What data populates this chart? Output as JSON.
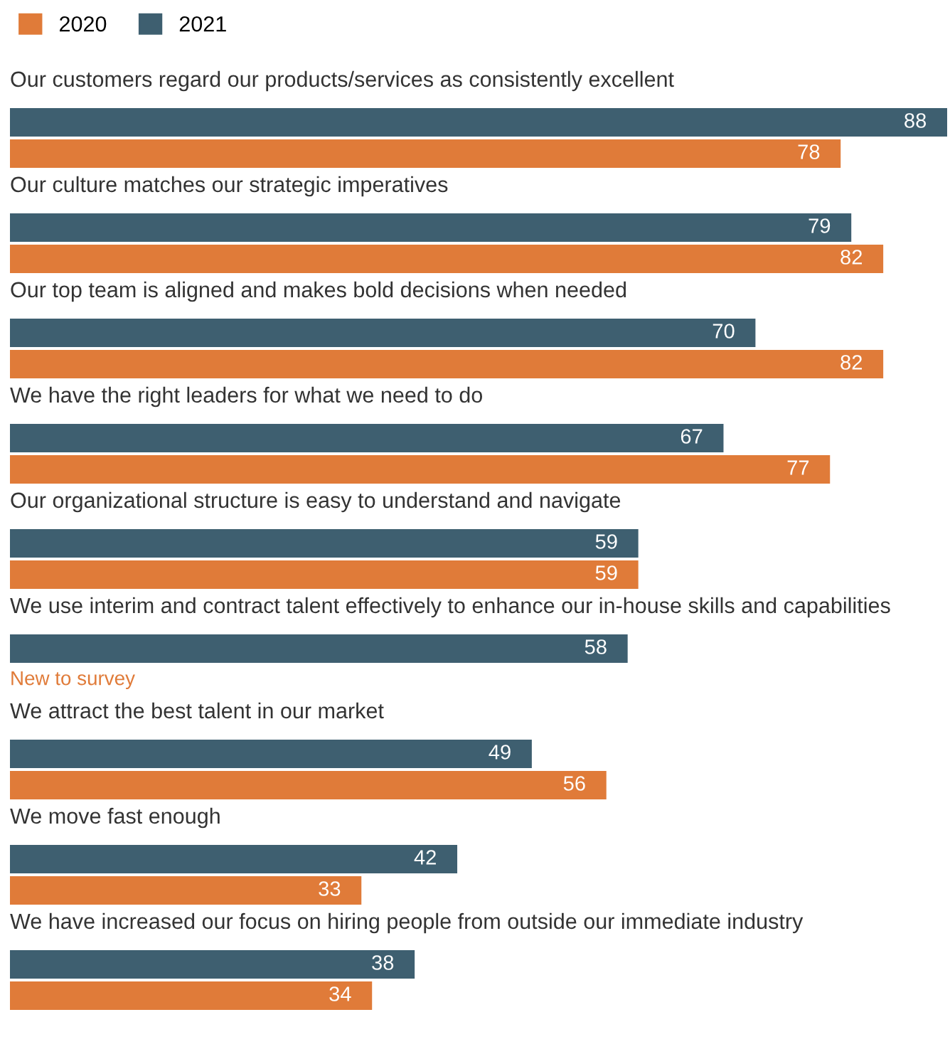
{
  "chart_data": {
    "type": "bar",
    "orientation": "horizontal",
    "legend": "top left",
    "data_labels": true,
    "categories": [
      "Our customers regard our products/services as consistently excellent",
      "Our culture matches our strategic imperatives",
      "Our top team is aligned and makes bold decisions when needed",
      "We have the right leaders for what we need to do",
      "Our organizational structure is easy to understand and navigate",
      "We use interim and contract talent effectively to enhance our in-house skills and capabilities",
      "We attract the best talent in our market",
      "We move fast enough",
      "We have increased our focus on hiring people from outside our immediate industry"
    ],
    "series": [
      {
        "name": "2020",
        "color": "#e07b39",
        "values": [
          78,
          82,
          82,
          77,
          59,
          null,
          56,
          33,
          34
        ]
      },
      {
        "name": "2021",
        "color": "#3e5f70",
        "values": [
          88,
          79,
          70,
          67,
          59,
          58,
          49,
          42,
          38
        ]
      }
    ],
    "annotations": [
      "New to survey"
    ]
  }
}
